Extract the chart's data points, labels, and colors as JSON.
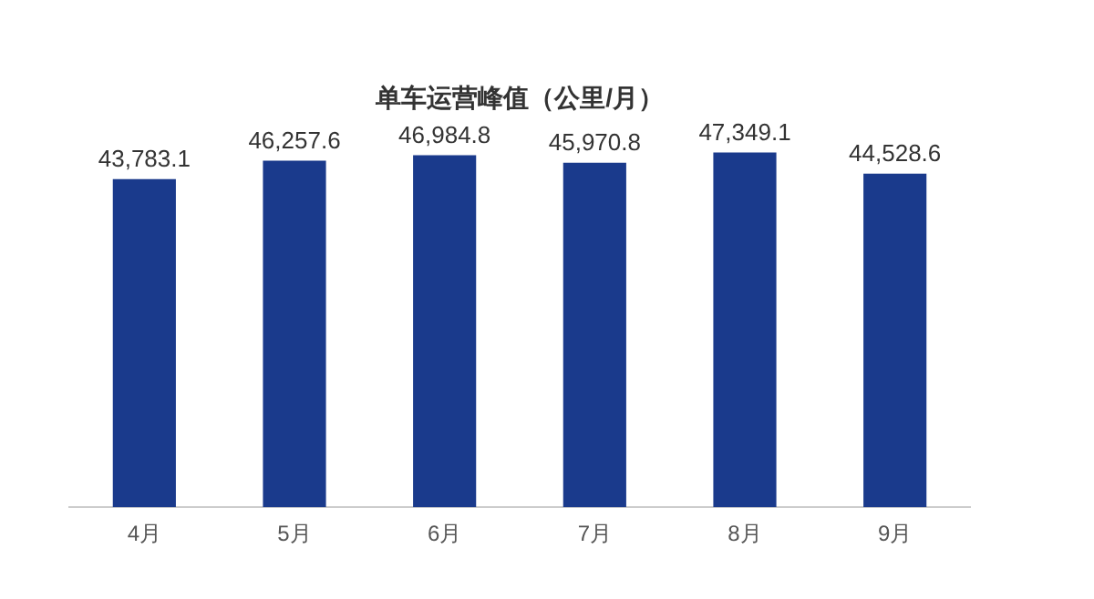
{
  "chart_data": {
    "type": "bar",
    "title": "单车运营峰值（公里/月）",
    "categories": [
      "4月",
      "5月",
      "6月",
      "7月",
      "8月",
      "9月"
    ],
    "values": [
      43783.1,
      46257.6,
      46984.8,
      45970.8,
      47349.1,
      44528.6
    ],
    "value_labels": [
      "43,783.1",
      "46,257.6",
      "46,984.8",
      "45,970.8",
      "47,349.1",
      "44,528.6"
    ],
    "color": "#1a3a8c",
    "tick_labels": "x",
    "grid": false,
    "legend": false
  }
}
